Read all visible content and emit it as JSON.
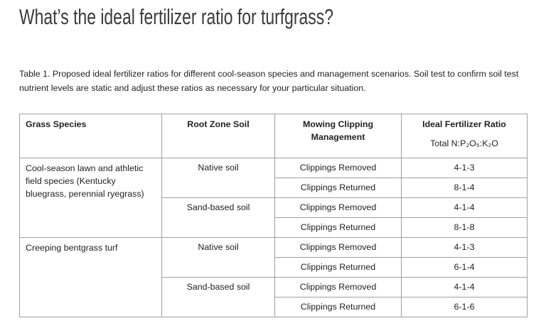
{
  "title": "What’s the ideal fertilizer ratio for turfgrass?",
  "caption": "Table 1. Proposed ideal fertilizer ratios for different cool-season species and management scenarios.  Soil test to confirm soil test nutrient levels are static and adjust these ratios as necessary for your particular situation.",
  "table": {
    "header": [
      "Grass Species",
      "Root Zone Soil",
      "Mowing Clipping Management",
      "Ideal Fertilizer Ratio"
    ],
    "header_sub": "Total N:P₂O₅:K₂O",
    "groups": [
      {
        "species": "Cool-season lawn and athletic field species (Kentucky bluegrass, perennial ryegrass)",
        "soils": [
          {
            "soil": "Native soil",
            "rows": [
              [
                "Clippings Removed",
                "4-1-3"
              ],
              [
                "Clippings Returned",
                "8-1-4"
              ]
            ]
          },
          {
            "soil": "Sand-based soil",
            "rows": [
              [
                "Clippings Removed",
                "4-1-4"
              ],
              [
                "Clippings Returned",
                "8-1-8"
              ]
            ]
          }
        ]
      },
      {
        "species": "Creeping bentgrass turf",
        "soils": [
          {
            "soil": "Native soil",
            "rows": [
              [
                "Clippings Removed",
                "4-1-3"
              ],
              [
                "Clippings Returned",
                "6-1-4"
              ]
            ]
          },
          {
            "soil": "Sand-based soil",
            "rows": [
              [
                "Clippings Removed",
                "4-1-4"
              ],
              [
                "Clippings Returned",
                "6-1-6"
              ]
            ]
          }
        ]
      }
    ]
  }
}
